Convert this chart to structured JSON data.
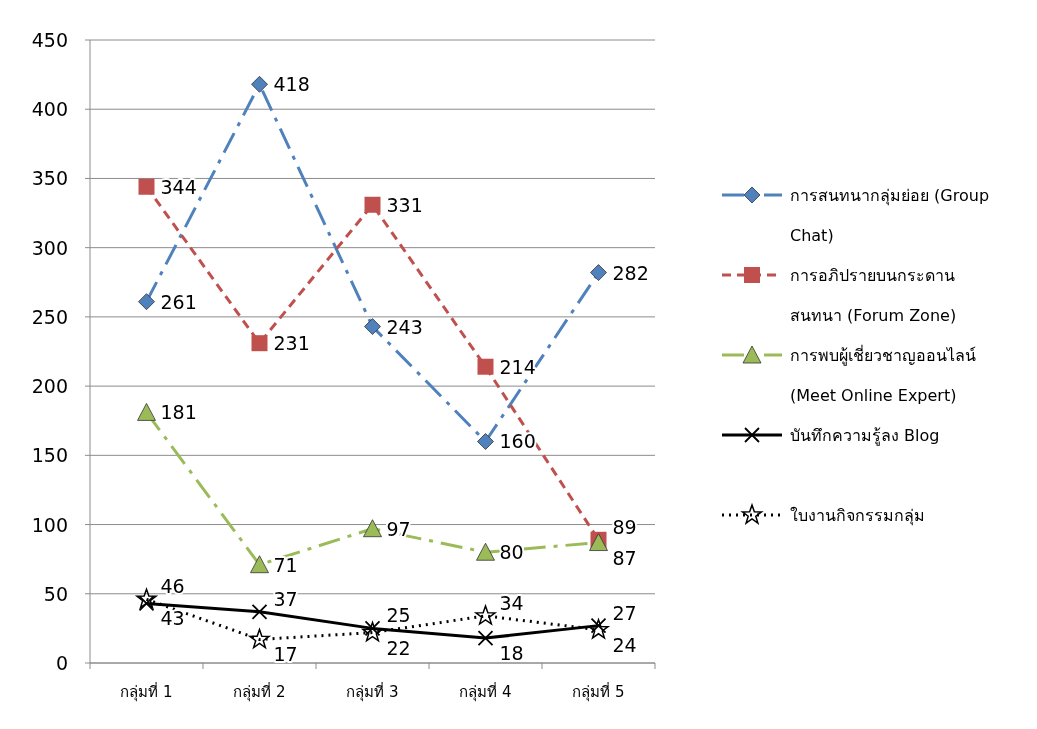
{
  "chart_data": {
    "type": "line",
    "categories": [
      "กลุ่มที่ 1",
      "กลุ่มที่ 2",
      "กลุ่มที่ 3",
      "กลุ่มที่ 4",
      "กลุ่มที่ 5"
    ],
    "series": [
      {
        "name": "การสนทนากลุ่มย่อย (Group Chat)",
        "color": "#4f81bd",
        "marker": "diamond",
        "line_style": "dashdot",
        "values": [
          261,
          418,
          243,
          160,
          282
        ]
      },
      {
        "name": "การอภิปรายบนกระดาน สนทนา (Forum Zone)",
        "color": "#c0504d",
        "marker": "square",
        "line_style": "dashed",
        "values": [
          344,
          231,
          331,
          214,
          89
        ]
      },
      {
        "name": "การพบผู้เชี่ยวชาญออนไลน์ (Meet Online Expert)",
        "color": "#9bbb59",
        "marker": "triangle",
        "line_style": "dashdot",
        "values": [
          181,
          71,
          97,
          80,
          87
        ]
      },
      {
        "name": "บันทึกความรู้ลง Blog",
        "color": "#000000",
        "marker": "cross",
        "line_style": "solid",
        "values": [
          43,
          37,
          25,
          18,
          27
        ]
      },
      {
        "name": "ใบงานกิจกรรมกลุ่ม",
        "color": "#000000",
        "marker": "star",
        "line_style": "dotted",
        "values": [
          46,
          17,
          22,
          34,
          24
        ]
      }
    ],
    "ylim": [
      0,
      450
    ],
    "yticks": [
      0,
      50,
      100,
      150,
      200,
      250,
      300,
      350,
      400,
      450
    ],
    "grid": "y",
    "legend": "right",
    "data_labels": true
  }
}
